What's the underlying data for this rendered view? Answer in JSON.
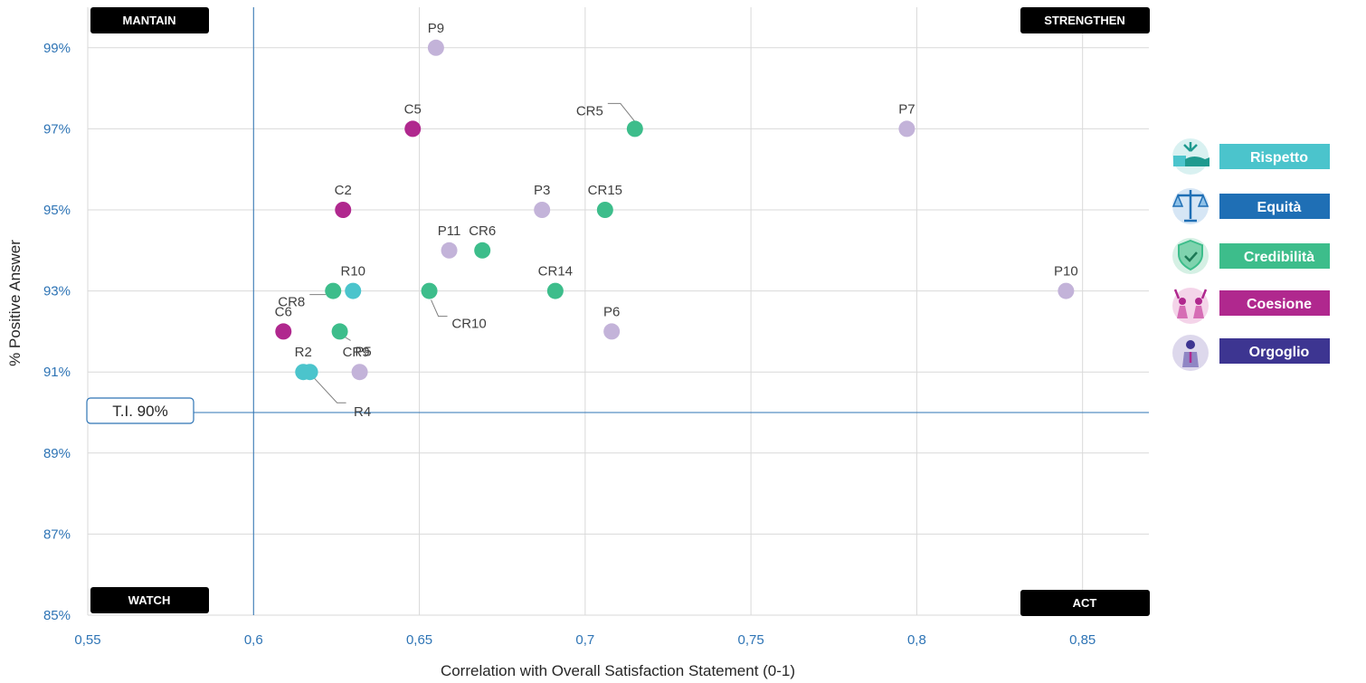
{
  "chart_data": {
    "type": "scatter",
    "xlabel": "Correlation with Overall Satisfaction Statement (0-1)",
    "ylabel": "% Positive Answer",
    "xlim": [
      0.55,
      0.87
    ],
    "ylim": [
      85,
      100
    ],
    "x_ticks": [
      "0,55",
      "0,6",
      "0,65",
      "0,7",
      "0,75",
      "0,8",
      "0,85"
    ],
    "x_tick_values": [
      0.55,
      0.6,
      0.65,
      0.7,
      0.75,
      0.8,
      0.85
    ],
    "y_ticks": [
      "85%",
      "87%",
      "89%",
      "91%",
      "93%",
      "95%",
      "97%",
      "99%"
    ],
    "y_tick_values": [
      85,
      87,
      89,
      91,
      93,
      95,
      97,
      99
    ],
    "grid": true,
    "reference_lines": {
      "x": 0.6,
      "y": 90,
      "y_label": "T.I. 90%"
    },
    "quadrants": {
      "top_left": "MANTAIN",
      "top_right": "STRENGTHEN",
      "bottom_left": "WATCH",
      "bottom_right": "ACT"
    },
    "categories": [
      {
        "name": "Rispetto",
        "color": "#4bc4cc",
        "icon": "hands-plant-icon"
      },
      {
        "name": "Equità",
        "color": "#1f6fb5",
        "icon": "scales-icon"
      },
      {
        "name": "Credibilità",
        "color": "#3dbd8b",
        "icon": "shield-check-icon"
      },
      {
        "name": "Coesione",
        "color": "#b0288e",
        "icon": "people-celebrate-icon"
      },
      {
        "name": "Orgoglio",
        "color": "#3d3591",
        "icon": "person-icon"
      }
    ],
    "point_colors": {
      "Rispetto": "#4bc4cc",
      "Credibilità": "#3dbd8b",
      "Coesione": "#b0288e",
      "Orgoglio": "#c3b3d9"
    },
    "points": [
      {
        "label": "P9",
        "x": 0.655,
        "y": 99,
        "group": "Orgoglio"
      },
      {
        "label": "C5",
        "x": 0.648,
        "y": 97,
        "group": "Coesione"
      },
      {
        "label": "CR5",
        "x": 0.715,
        "y": 97,
        "group": "Credibilità"
      },
      {
        "label": "P7",
        "x": 0.797,
        "y": 97,
        "group": "Orgoglio"
      },
      {
        "label": "C2",
        "x": 0.627,
        "y": 95,
        "group": "Coesione"
      },
      {
        "label": "P3",
        "x": 0.687,
        "y": 95,
        "group": "Orgoglio"
      },
      {
        "label": "CR15",
        "x": 0.706,
        "y": 95,
        "group": "Credibilità"
      },
      {
        "label": "P11",
        "x": 0.659,
        "y": 94,
        "group": "Orgoglio"
      },
      {
        "label": "CR6",
        "x": 0.669,
        "y": 94,
        "group": "Credibilità"
      },
      {
        "label": "R10",
        "x": 0.63,
        "y": 93,
        "group": "Rispetto"
      },
      {
        "label": "CR8",
        "x": 0.624,
        "y": 93,
        "group": "Credibilità"
      },
      {
        "label": "CR10",
        "x": 0.653,
        "y": 93,
        "group": "Credibilità"
      },
      {
        "label": "CR14",
        "x": 0.691,
        "y": 93,
        "group": "Credibilità"
      },
      {
        "label": "P10",
        "x": 0.845,
        "y": 93,
        "group": "Orgoglio"
      },
      {
        "label": "C6",
        "x": 0.609,
        "y": 92,
        "group": "Coesione"
      },
      {
        "label": "P5",
        "x": 0.626,
        "y": 92,
        "group": "Credibilità"
      },
      {
        "label": "P6",
        "x": 0.708,
        "y": 92,
        "group": "Orgoglio"
      },
      {
        "label": "R2",
        "x": 0.615,
        "y": 91,
        "group": "Rispetto"
      },
      {
        "label": "R4",
        "x": 0.617,
        "y": 91,
        "group": "Rispetto"
      },
      {
        "label": "CR9",
        "x": 0.632,
        "y": 91,
        "group": "Orgoglio"
      }
    ]
  }
}
